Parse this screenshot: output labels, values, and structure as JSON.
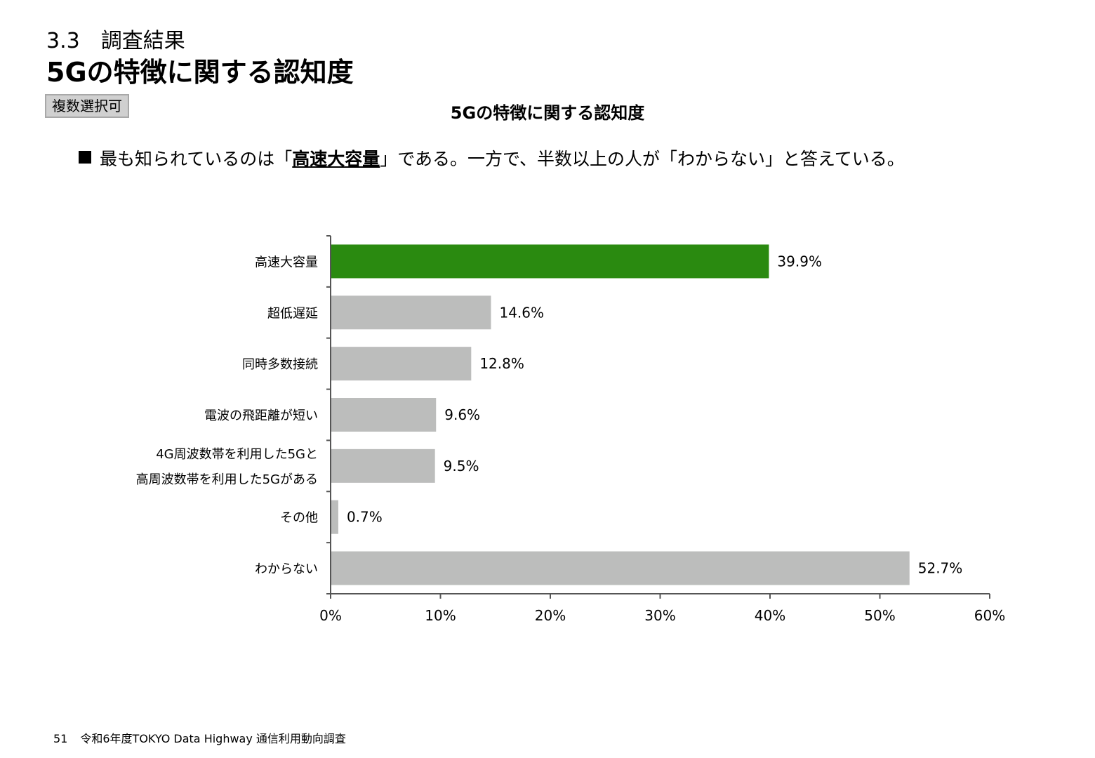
{
  "header": {
    "section": "3.3　調査結果",
    "title": "5Gの特徴に関する認知度",
    "badge": "複数選択可"
  },
  "summary": {
    "before": "最も知られているのは「",
    "highlight": "高速大容量",
    "after": "」である。一方で、半数以上の人が「わからない」と答えている。"
  },
  "footer": {
    "page": "51",
    "text": "令和6年度TOKYO Data Highway 通信利用動向調査"
  },
  "colors": {
    "highlight_bar": "#2a8a10",
    "bar": "#bcbdbc",
    "axis": "#555555"
  },
  "chart_data": {
    "type": "bar",
    "orientation": "horizontal",
    "title": "5Gの特徴に関する認知度",
    "categories": [
      [
        "高速大容量"
      ],
      [
        "超低遅延"
      ],
      [
        "同時多数接続"
      ],
      [
        "電波の飛距離が短い"
      ],
      [
        "4G周波数帯を利用した5Gと",
        "高周波数帯を利用した5Gがある"
      ],
      [
        "その他"
      ],
      [
        "わからない"
      ]
    ],
    "values": [
      39.9,
      14.6,
      12.8,
      9.6,
      9.5,
      0.7,
      52.7
    ],
    "value_labels": [
      "39.9%",
      "14.6%",
      "12.8%",
      "9.6%",
      "9.5%",
      "0.7%",
      "52.7%"
    ],
    "xlim": [
      0,
      60
    ],
    "xticks": [
      "0%",
      "10%",
      "20%",
      "30%",
      "40%",
      "50%",
      "60%"
    ],
    "highlight_index": 0,
    "grid": false,
    "legend": "none"
  }
}
